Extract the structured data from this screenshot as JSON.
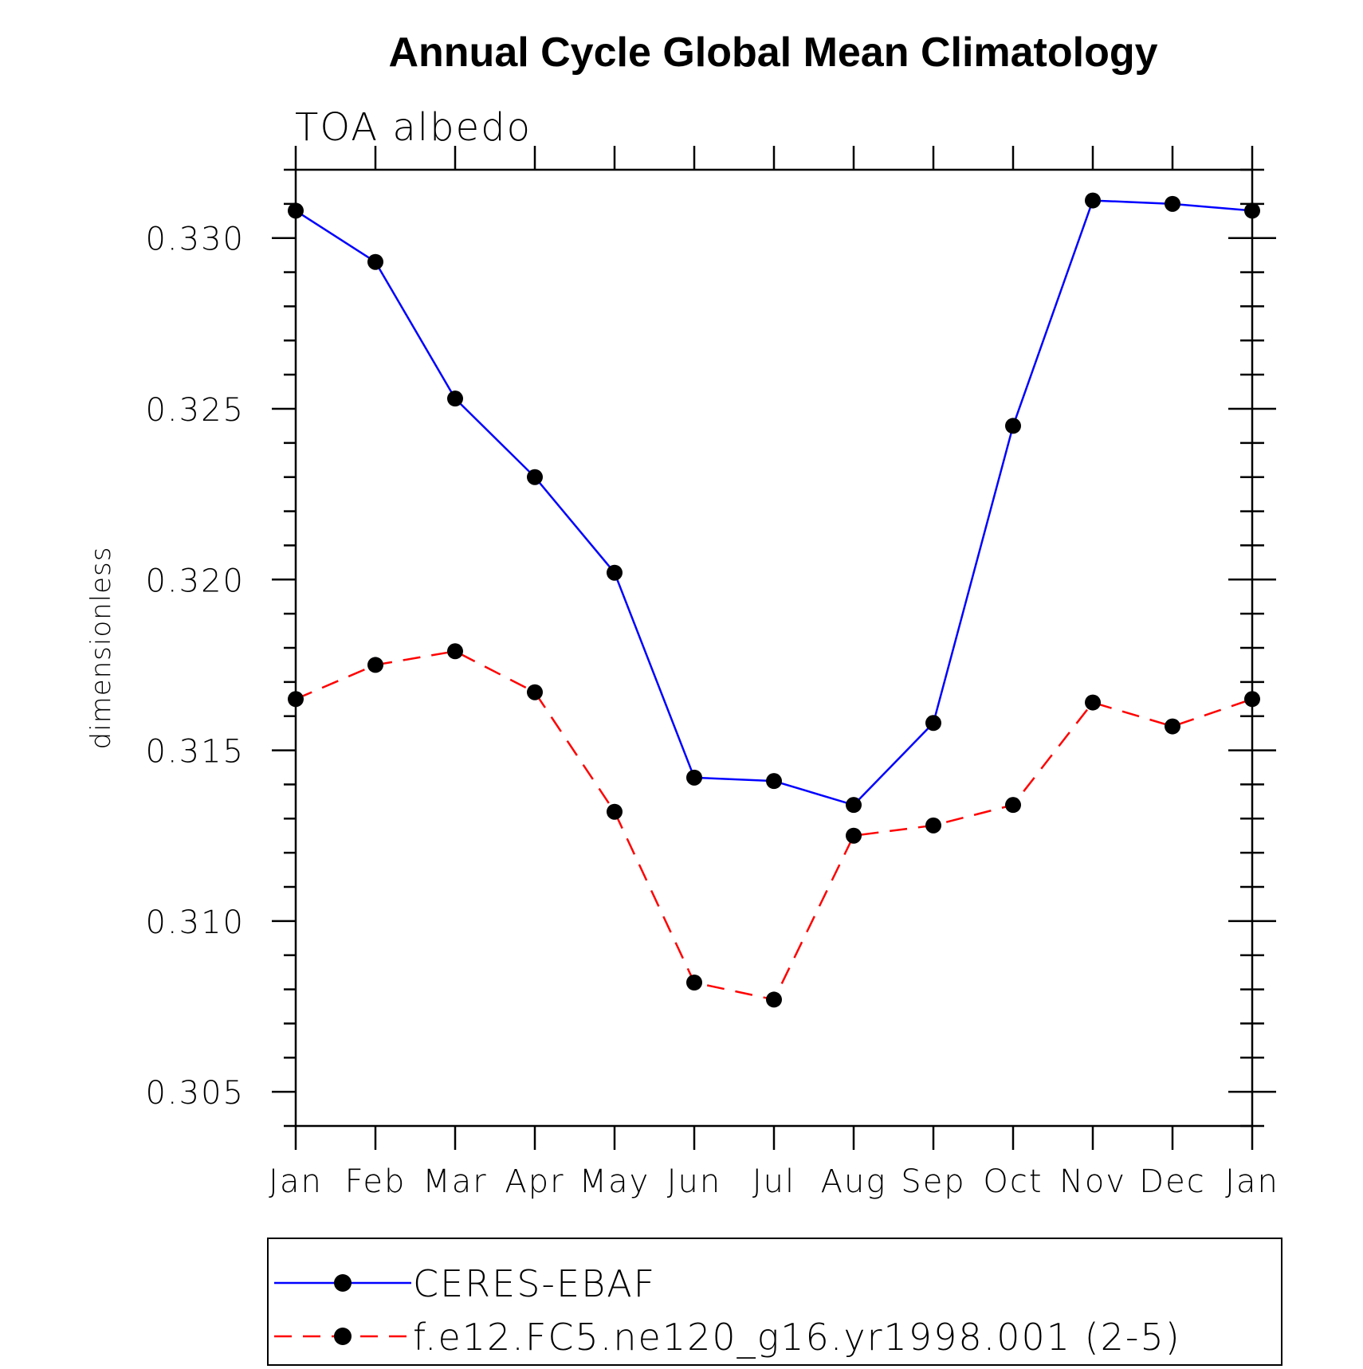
{
  "chart_data": {
    "type": "line",
    "title": "Annual Cycle Global Mean Climatology",
    "subtitle": "TOA albedo",
    "ylabel": "dimensionless",
    "categories": [
      "Jan",
      "Feb",
      "Mar",
      "Apr",
      "May",
      "Jun",
      "Jul",
      "Aug",
      "Sep",
      "Oct",
      "Nov",
      "Dec",
      "Jan"
    ],
    "ylim": [
      0.304,
      0.332
    ],
    "yticks": [
      0.305,
      0.31,
      0.315,
      0.32,
      0.325,
      0.33
    ],
    "ytick_labels": [
      "0.305",
      "0.310",
      "0.315",
      "0.320",
      "0.325",
      "0.330"
    ],
    "yminor_step": 0.001,
    "grid": false,
    "legend_position": "bottom",
    "series": [
      {
        "name": "CERES-EBAF",
        "color": "#0000ff",
        "dash": "solid",
        "marker": "filled-circle",
        "values": [
          0.3308,
          0.3293,
          0.3253,
          0.323,
          0.3202,
          0.3142,
          0.3141,
          0.3134,
          0.3158,
          0.3245,
          0.3311,
          0.331,
          0.3308
        ]
      },
      {
        "name": "f.e12.FC5.ne120_g16.yr1998.001 (2-5)",
        "color": "#ff0000",
        "dash": "dashed",
        "marker": "filled-circle",
        "values": [
          0.3165,
          0.3175,
          0.3179,
          0.3167,
          0.3132,
          0.3082,
          0.3077,
          0.3125,
          0.3128,
          0.3134,
          0.3164,
          0.3157,
          0.3165
        ]
      }
    ]
  }
}
